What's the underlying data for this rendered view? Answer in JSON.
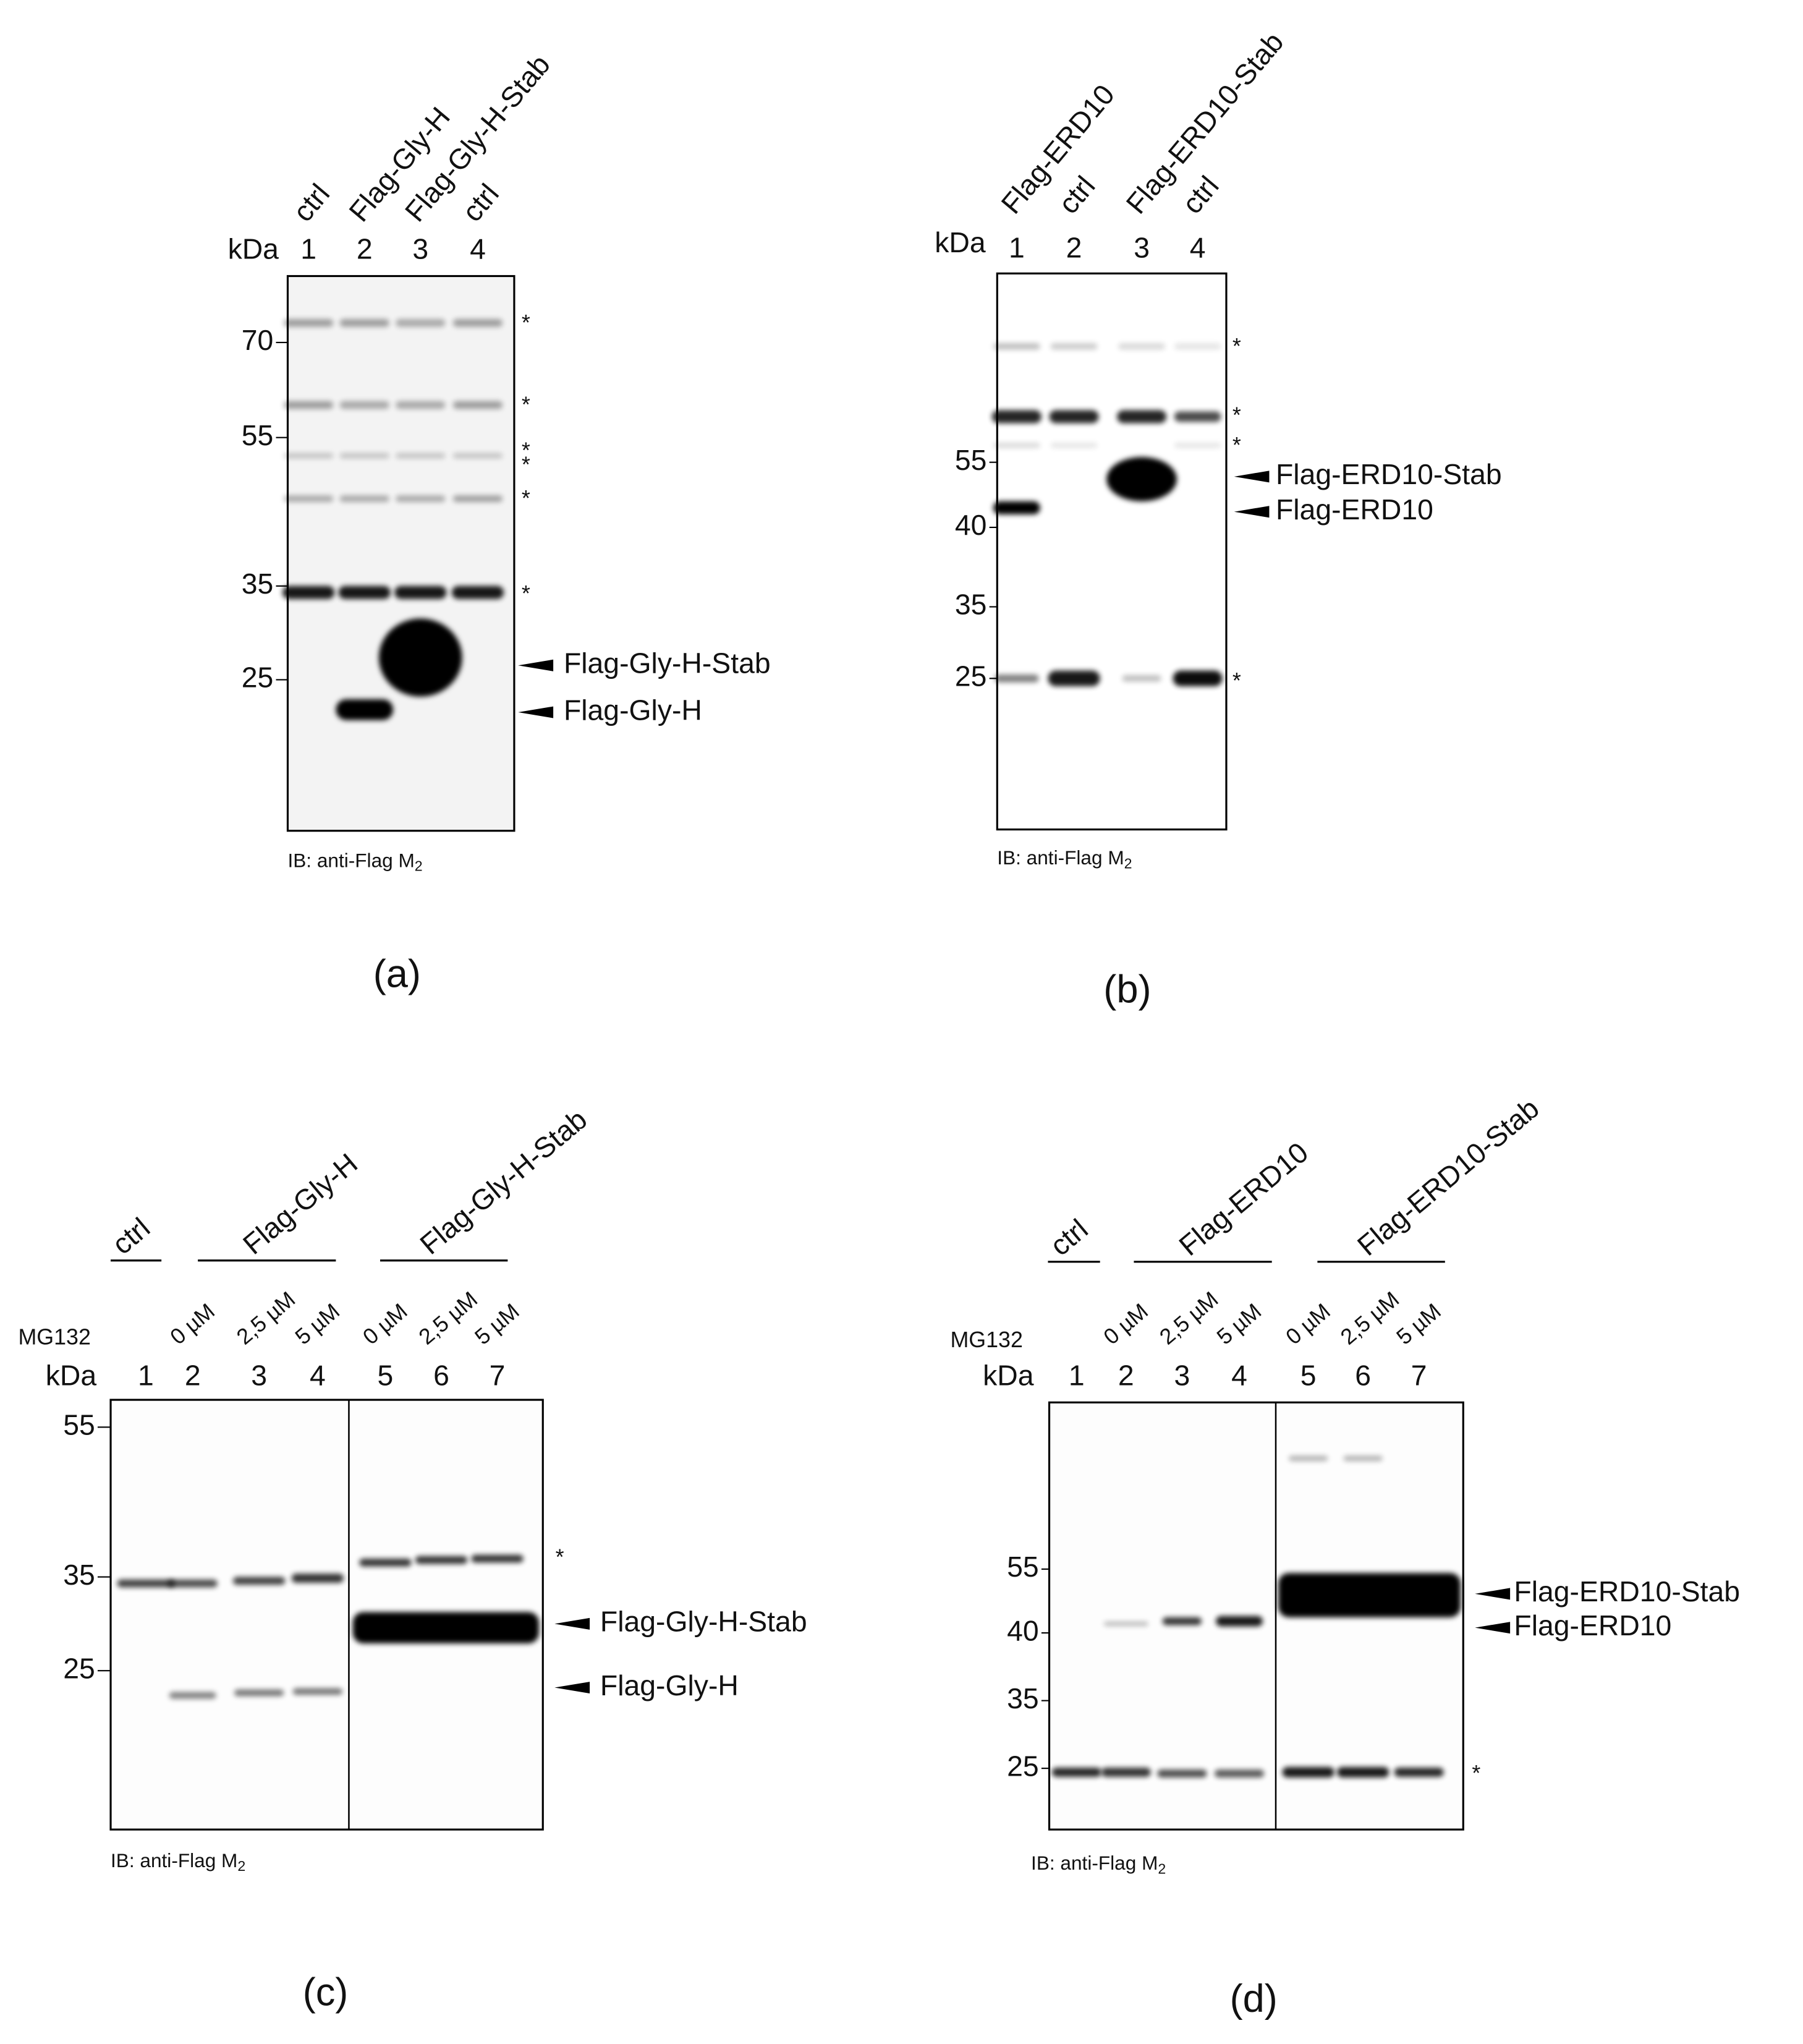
{
  "panels": [
    {
      "label": "(a)",
      "lanes": [
        "ctrl",
        "Flag-Gly-H",
        "Flag-Gly-H-Stab",
        "ctrl"
      ],
      "kda": "kDa",
      "lane_numbers": [
        "1",
        "2",
        "3",
        "4"
      ],
      "markers": [
        "70",
        "55",
        "35",
        "25"
      ],
      "bands": [
        "Flag-Gly-H-Stab",
        "Flag-Gly-H"
      ],
      "asterisks": [
        "*",
        "*",
        "*",
        "*",
        "*",
        "*"
      ],
      "antibody": "IB: anti-Flag M",
      "subscript": "2"
    },
    {
      "label": "(b)",
      "lanes": [
        "Flag-ERD10",
        "ctrl",
        "Flag-ERD10-Stab",
        "ctrl"
      ],
      "kda": "kDa",
      "lane_numbers": [
        "1",
        "2",
        "3",
        "4"
      ],
      "markers": [
        "55",
        "40",
        "35",
        "25"
      ],
      "bands": [
        "Flag-ERD10-Stab",
        "Flag-ERD10"
      ],
      "asterisks": [
        "*",
        "*",
        "*",
        "*"
      ],
      "antibody": "IB: anti-Flag M",
      "subscript": "2"
    },
    {
      "label": "(c)",
      "groups": [
        "ctrl",
        "Flag-Gly-H",
        "Flag-Gly-H-Stab"
      ],
      "treatment": "MG132",
      "concentrations": [
        "0 µM",
        "2,5 µM",
        "5 µM",
        "0 µM",
        "2,5 µM",
        "5 µM"
      ],
      "kda": "kDa",
      "lane_numbers": [
        "1",
        "2",
        "3",
        "4",
        "5",
        "6",
        "7"
      ],
      "markers": [
        "55",
        "35",
        "25"
      ],
      "bands": [
        "Flag-Gly-H-Stab",
        "Flag-Gly-H"
      ],
      "asterisks": [
        "*"
      ],
      "antibody": "IB: anti-Flag M",
      "subscript": "2"
    },
    {
      "label": "(d)",
      "groups": [
        "ctrl",
        "Flag-ERD10",
        "Flag-ERD10-Stab"
      ],
      "treatment": "MG132",
      "concentrations": [
        "0 µM",
        "2,5 µM",
        "5 µM",
        "0 µM",
        "2,5 µM",
        "5 µM"
      ],
      "kda": "kDa",
      "lane_numbers": [
        "1",
        "2",
        "3",
        "4",
        "5",
        "6",
        "7"
      ],
      "markers": [
        "55",
        "40",
        "35",
        "25"
      ],
      "bands": [
        "Flag-ERD10-Stab",
        "Flag-ERD10"
      ],
      "asterisks": [
        "*"
      ],
      "antibody": "IB: anti-Flag M",
      "subscript": "2"
    }
  ]
}
